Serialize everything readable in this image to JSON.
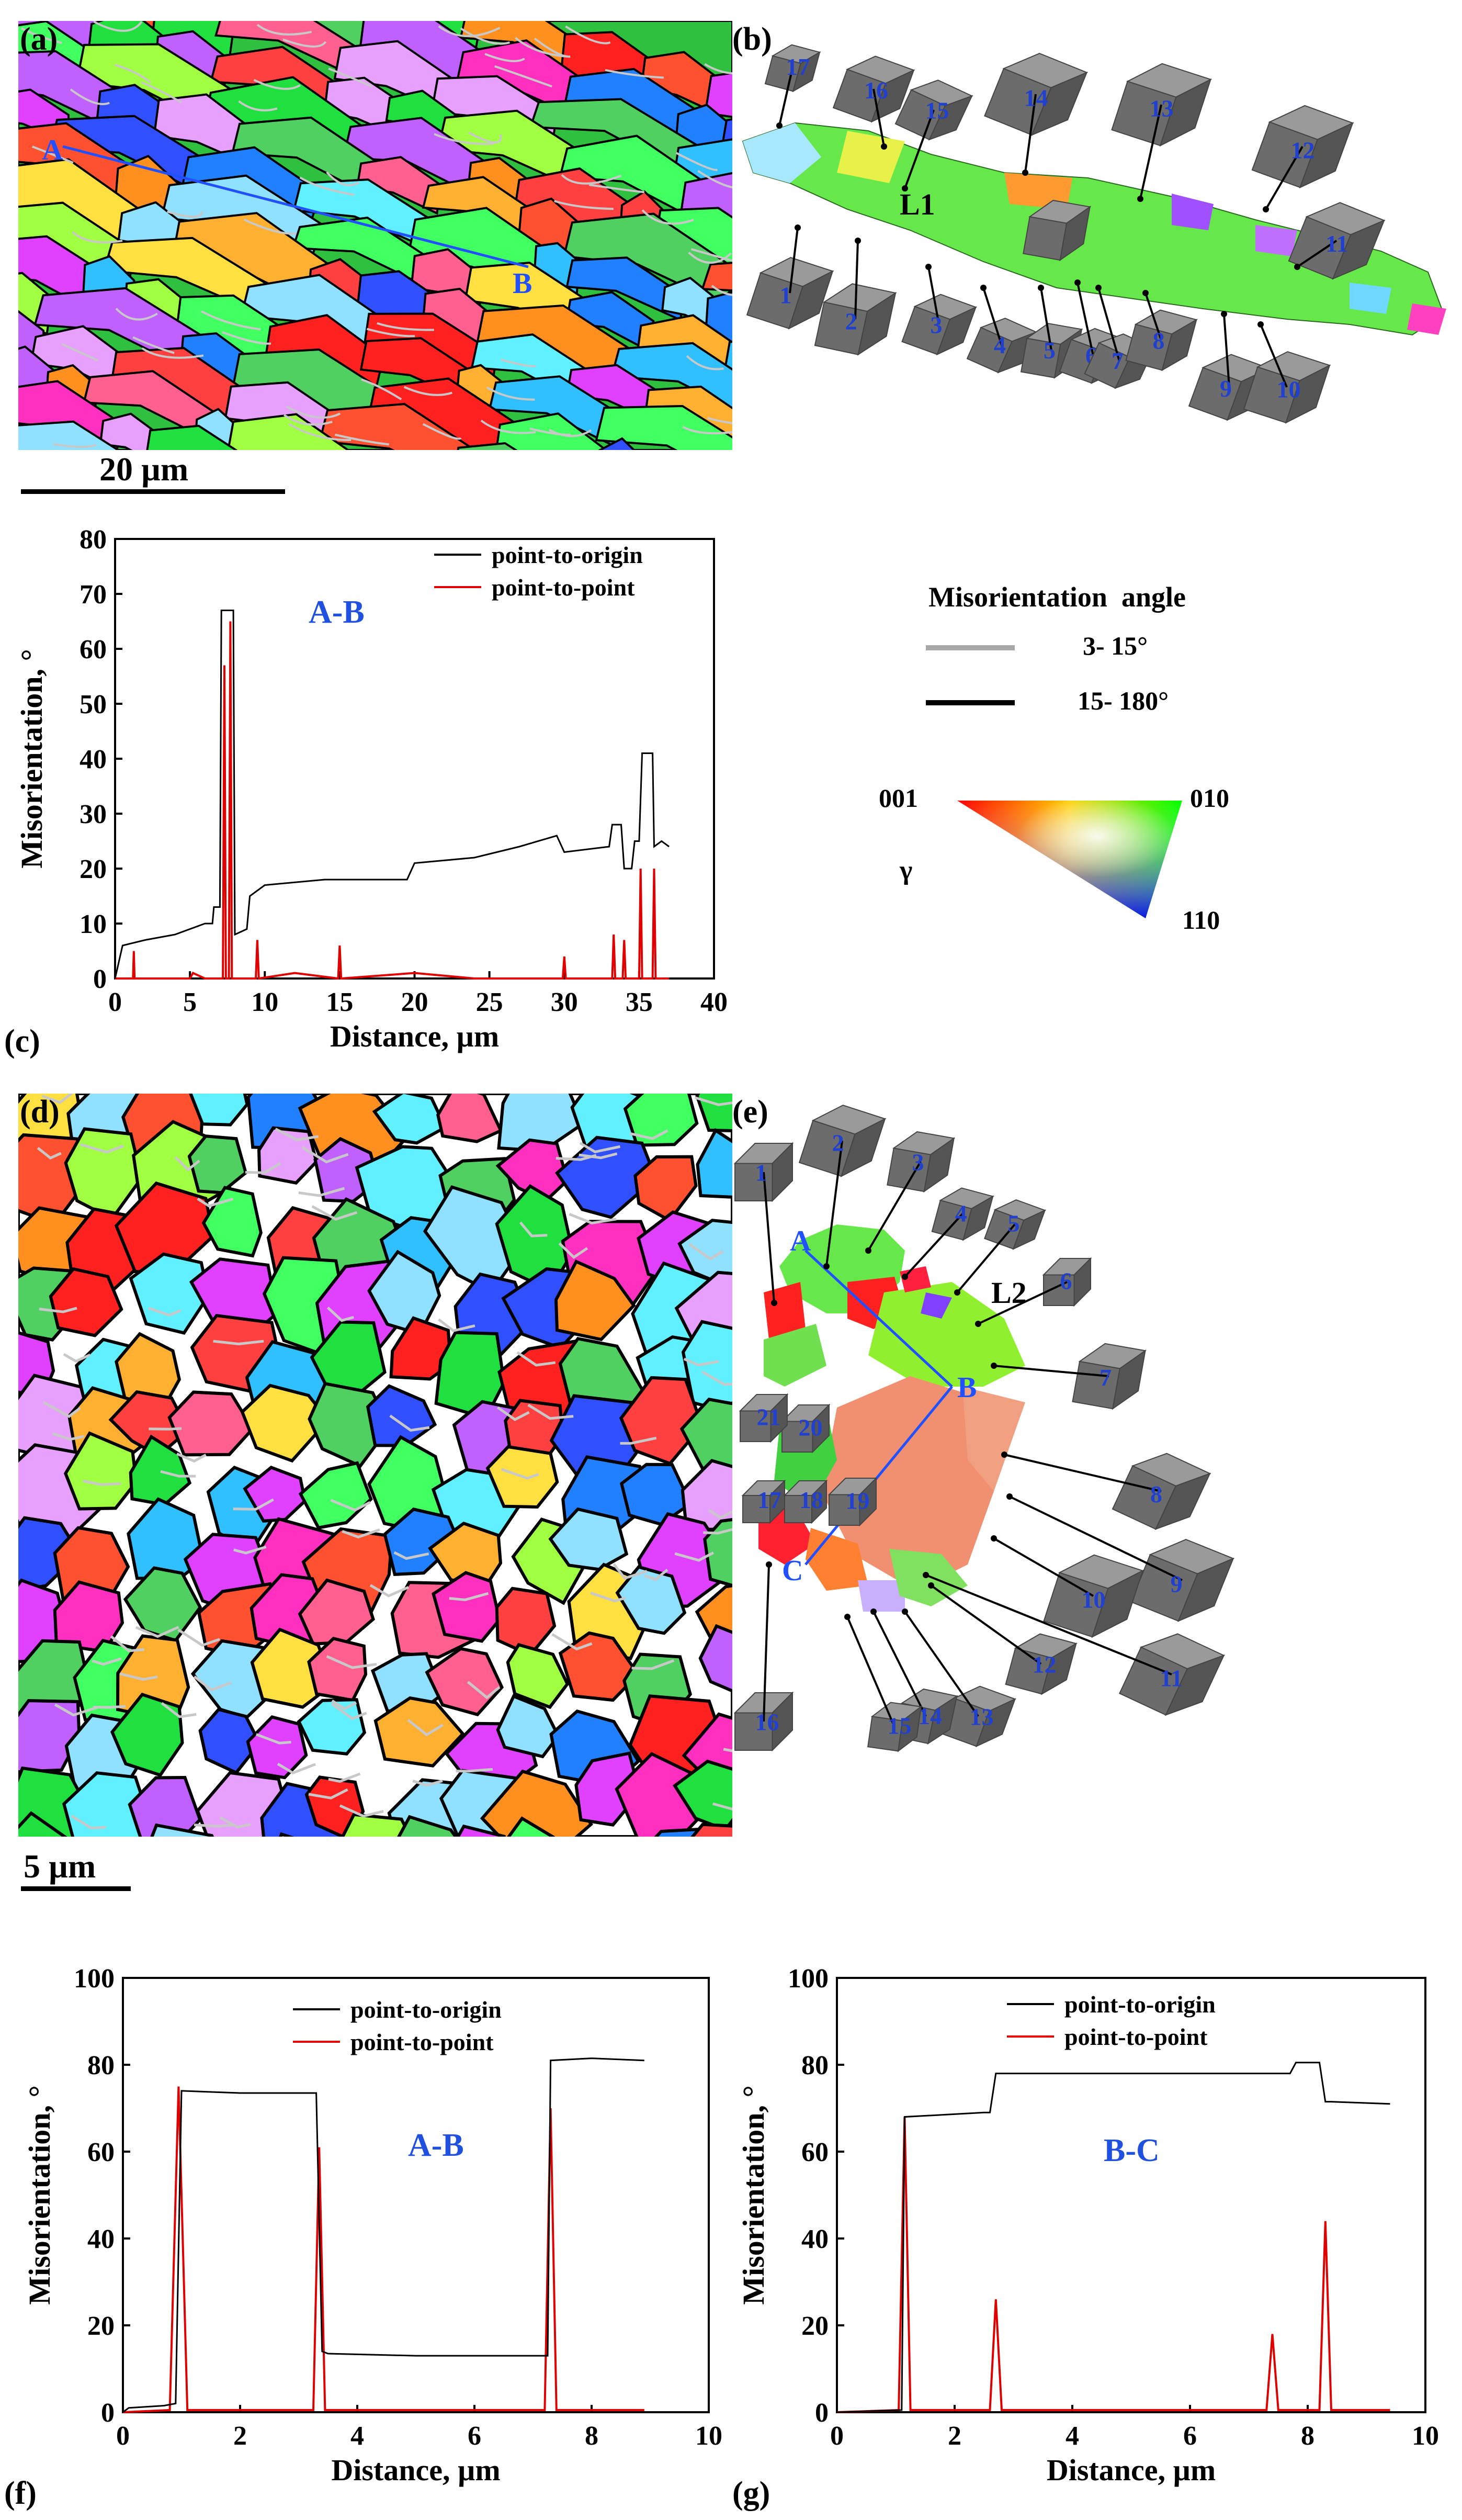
{
  "panels": {
    "a": "(a)",
    "b": "(b)",
    "c": "(c)",
    "d": "(d)",
    "e": "(e)",
    "f": "(f)",
    "g": "(g)"
  },
  "map_a": {
    "point_A": "A",
    "point_B": "B",
    "scale_label": "20 µm"
  },
  "map_b": {
    "line_label": "L1",
    "cube_labels": [
      "1",
      "2",
      "3",
      "4",
      "5",
      "6",
      "7",
      "8",
      "9",
      "10",
      "11",
      "12",
      "13",
      "14",
      "15",
      "16",
      "17"
    ]
  },
  "map_d": {
    "scale_label": "5 µm"
  },
  "map_e": {
    "line_label": "L2",
    "point_A": "A",
    "point_B": "B",
    "point_C": "C",
    "cube_labels": [
      "1",
      "2",
      "3",
      "4",
      "5",
      "6",
      "7",
      "8",
      "9",
      "10",
      "11",
      "12",
      "13",
      "14",
      "15",
      "16",
      "17",
      "18",
      "19",
      "20",
      "21"
    ]
  },
  "legend": {
    "title": "Misorientation  angle",
    "low_label": "3- 15°",
    "high_label": "15- 180°",
    "ipf_001": "001",
    "ipf_010": "010",
    "ipf_110": "110",
    "ipf_gamma": "γ",
    "colors": {
      "low": "#a8a8a8",
      "high": "#000000"
    }
  },
  "chart_data": [
    {
      "id": "c",
      "type": "line",
      "annotation": "A-B",
      "xlabel": "Distance, µm",
      "ylabel": "Misorientation, °",
      "xlim": [
        0,
        40
      ],
      "ylim": [
        0,
        80
      ],
      "xticks": [
        0,
        5,
        10,
        15,
        20,
        25,
        30,
        35,
        40
      ],
      "yticks": [
        0,
        10,
        20,
        30,
        40,
        50,
        60,
        70,
        80
      ],
      "legend_position": "top-right",
      "series": [
        {
          "name": "point-to-origin",
          "color": "#000000",
          "x": [
            0,
            0.5,
            2,
            4,
            6,
            6.5,
            6.6,
            7,
            7.1,
            7.9,
            8,
            8.8,
            9,
            10,
            12,
            14,
            16,
            19.5,
            20,
            24,
            27,
            29.5,
            30,
            33,
            33.2,
            33.8,
            34,
            34.5,
            34.7,
            35,
            35.2,
            35.9,
            36,
            36.5,
            37
          ],
          "y": [
            0,
            6,
            7,
            8,
            10,
            10,
            13,
            13,
            67,
            67,
            8,
            9,
            15,
            17,
            17.5,
            18,
            18,
            18,
            21,
            22,
            24,
            26,
            23,
            24,
            28,
            28,
            20,
            20,
            25,
            25,
            41,
            41,
            24,
            25,
            24
          ]
        },
        {
          "name": "point-to-point",
          "color": "#e00000",
          "x": [
            0,
            1.2,
            1.25,
            1.3,
            5,
            5.2,
            6,
            7.2,
            7.3,
            7.4,
            7.6,
            7.7,
            7.8,
            8.5,
            9.4,
            9.5,
            9.6,
            12,
            14.9,
            15,
            15.1,
            20,
            24,
            29.9,
            30,
            30.1,
            33.2,
            33.3,
            33.4,
            33.9,
            34,
            34.1,
            35,
            35.1,
            35.2,
            35.9,
            36,
            36.1,
            37
          ],
          "y": [
            0,
            0,
            5,
            0,
            0,
            1,
            0,
            0,
            57,
            0,
            0,
            65,
            0,
            0,
            0,
            7,
            0,
            1,
            0,
            6,
            0,
            1,
            0,
            0,
            4,
            0,
            0,
            8,
            0,
            0,
            7,
            0,
            0,
            20,
            0,
            0,
            20,
            0,
            0
          ]
        }
      ]
    },
    {
      "id": "f",
      "type": "line",
      "annotation": "A-B",
      "xlabel": "Distance, µm",
      "ylabel": "Misorientation, °",
      "xlim": [
        0,
        10
      ],
      "ylim": [
        0,
        100
      ],
      "xticks": [
        0,
        2,
        4,
        6,
        8,
        10
      ],
      "yticks": [
        0,
        20,
        40,
        60,
        80,
        100
      ],
      "legend_position": "top-center",
      "series": [
        {
          "name": "point-to-origin",
          "color": "#000000",
          "x": [
            0,
            0.1,
            0.7,
            0.9,
            1.0,
            2,
            3,
            3.3,
            3.4,
            3.5,
            5,
            7,
            7.2,
            7.25,
            7.3,
            8,
            8.9
          ],
          "y": [
            0,
            1,
            1.5,
            2,
            74,
            73.5,
            73.5,
            73.5,
            14,
            13.5,
            13,
            13,
            13,
            13,
            81,
            81.5,
            81
          ]
        },
        {
          "name": "point-to-point",
          "color": "#e00000",
          "x": [
            0,
            0.8,
            0.95,
            1.1,
            3.25,
            3.35,
            3.45,
            7.2,
            7.3,
            7.4,
            8.9
          ],
          "y": [
            0,
            0.5,
            75,
            0.5,
            0.5,
            61,
            0.5,
            0.5,
            70,
            0.5,
            0.5
          ]
        }
      ]
    },
    {
      "id": "g",
      "type": "line",
      "annotation": "B-C",
      "xlabel": "Distance, µm",
      "ylabel": "Misorientation, °",
      "xlim": [
        0,
        10
      ],
      "ylim": [
        0,
        100
      ],
      "xticks": [
        0,
        2,
        4,
        6,
        8,
        10
      ],
      "yticks": [
        0,
        20,
        40,
        60,
        80,
        100
      ],
      "legend_position": "top-center",
      "series": [
        {
          "name": "point-to-origin",
          "color": "#000000",
          "x": [
            0,
            1.1,
            1.15,
            2.5,
            2.6,
            2.7,
            4,
            6,
            7.7,
            7.8,
            8.2,
            8.3,
            8.4,
            9.4
          ],
          "y": [
            0,
            0.5,
            68,
            69,
            69,
            78,
            78,
            78,
            78,
            80.5,
            80.5,
            71.5,
            71.5,
            71
          ]
        },
        {
          "name": "point-to-point",
          "color": "#e00000",
          "x": [
            0,
            1.05,
            1.15,
            1.25,
            2.6,
            2.7,
            2.8,
            7.3,
            7.4,
            7.5,
            8.2,
            8.3,
            8.4,
            9.4
          ],
          "y": [
            0,
            0.5,
            68,
            0.5,
            0.5,
            26,
            0.5,
            0.5,
            18,
            0.5,
            0.5,
            44,
            0.5,
            0.5
          ]
        }
      ]
    }
  ]
}
